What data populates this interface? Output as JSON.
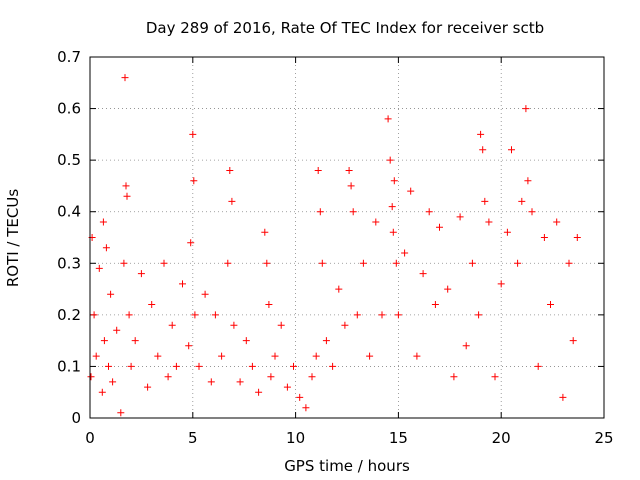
{
  "chart_data": {
    "type": "scatter",
    "title": "Day 289 of 2016, Rate Of TEC Index for receiver sctb",
    "xlabel": "GPS time / hours",
    "ylabel": "ROTI / TECUs",
    "xlim": [
      0,
      25
    ],
    "ylim": [
      0,
      0.7
    ],
    "x_ticks": [
      "0",
      "5",
      "10",
      "15",
      "20",
      "25"
    ],
    "y_ticks": [
      "0",
      "0.1",
      "0.2",
      "0.3",
      "0.4",
      "0.5",
      "0.6",
      "0.7"
    ],
    "grid": true,
    "marker": "+",
    "color": "#ff0000",
    "series": [
      {
        "name": "ROTI",
        "x": [
          0.05,
          0.1,
          0.2,
          0.3,
          0.45,
          0.6,
          0.65,
          0.7,
          0.8,
          0.9,
          1.0,
          1.1,
          1.3,
          1.5,
          1.65,
          1.7,
          1.75,
          1.8,
          1.9,
          2.0,
          2.2,
          2.5,
          2.8,
          3.0,
          3.3,
          3.6,
          3.8,
          4.0,
          4.2,
          4.5,
          4.8,
          4.9,
          5.0,
          5.05,
          5.1,
          5.3,
          5.6,
          5.9,
          6.1,
          6.4,
          6.7,
          6.8,
          6.9,
          7.0,
          7.3,
          7.6,
          7.9,
          8.2,
          8.5,
          8.6,
          8.7,
          8.8,
          9.0,
          9.3,
          9.6,
          9.9,
          10.2,
          10.5,
          10.8,
          11.0,
          11.1,
          11.2,
          11.3,
          11.5,
          11.8,
          12.1,
          12.4,
          12.6,
          12.7,
          12.8,
          13.0,
          13.3,
          13.6,
          13.9,
          14.2,
          14.5,
          14.6,
          14.7,
          14.75,
          14.8,
          14.9,
          15.0,
          15.3,
          15.6,
          15.9,
          16.2,
          16.5,
          16.8,
          17.0,
          17.4,
          17.7,
          18.0,
          18.3,
          18.6,
          18.9,
          19.0,
          19.1,
          19.2,
          19.4,
          19.7,
          20.0,
          20.3,
          20.5,
          20.8,
          21.0,
          21.2,
          21.3,
          21.5,
          21.8,
          22.1,
          22.4,
          22.7,
          23.0,
          23.3,
          23.5,
          23.7
        ],
        "y": [
          0.08,
          0.35,
          0.2,
          0.12,
          0.29,
          0.05,
          0.38,
          0.15,
          0.33,
          0.1,
          0.24,
          0.07,
          0.17,
          0.01,
          0.3,
          0.66,
          0.45,
          0.43,
          0.2,
          0.1,
          0.15,
          0.28,
          0.06,
          0.22,
          0.12,
          0.3,
          0.08,
          0.18,
          0.1,
          0.26,
          0.14,
          0.34,
          0.55,
          0.46,
          0.2,
          0.1,
          0.24,
          0.07,
          0.2,
          0.12,
          0.3,
          0.48,
          0.42,
          0.18,
          0.07,
          0.15,
          0.1,
          0.05,
          0.36,
          0.3,
          0.22,
          0.08,
          0.12,
          0.18,
          0.06,
          0.1,
          0.04,
          0.02,
          0.08,
          0.12,
          0.48,
          0.4,
          0.3,
          0.15,
          0.1,
          0.25,
          0.18,
          0.48,
          0.45,
          0.4,
          0.2,
          0.3,
          0.12,
          0.38,
          0.2,
          0.58,
          0.5,
          0.41,
          0.36,
          0.46,
          0.3,
          0.2,
          0.32,
          0.44,
          0.12,
          0.28,
          0.4,
          0.22,
          0.37,
          0.25,
          0.08,
          0.39,
          0.14,
          0.3,
          0.2,
          0.55,
          0.52,
          0.42,
          0.38,
          0.08,
          0.26,
          0.36,
          0.52,
          0.3,
          0.42,
          0.6,
          0.46,
          0.4,
          0.1,
          0.35,
          0.22,
          0.38,
          0.04,
          0.3,
          0.15,
          0.35
        ]
      }
    ]
  }
}
